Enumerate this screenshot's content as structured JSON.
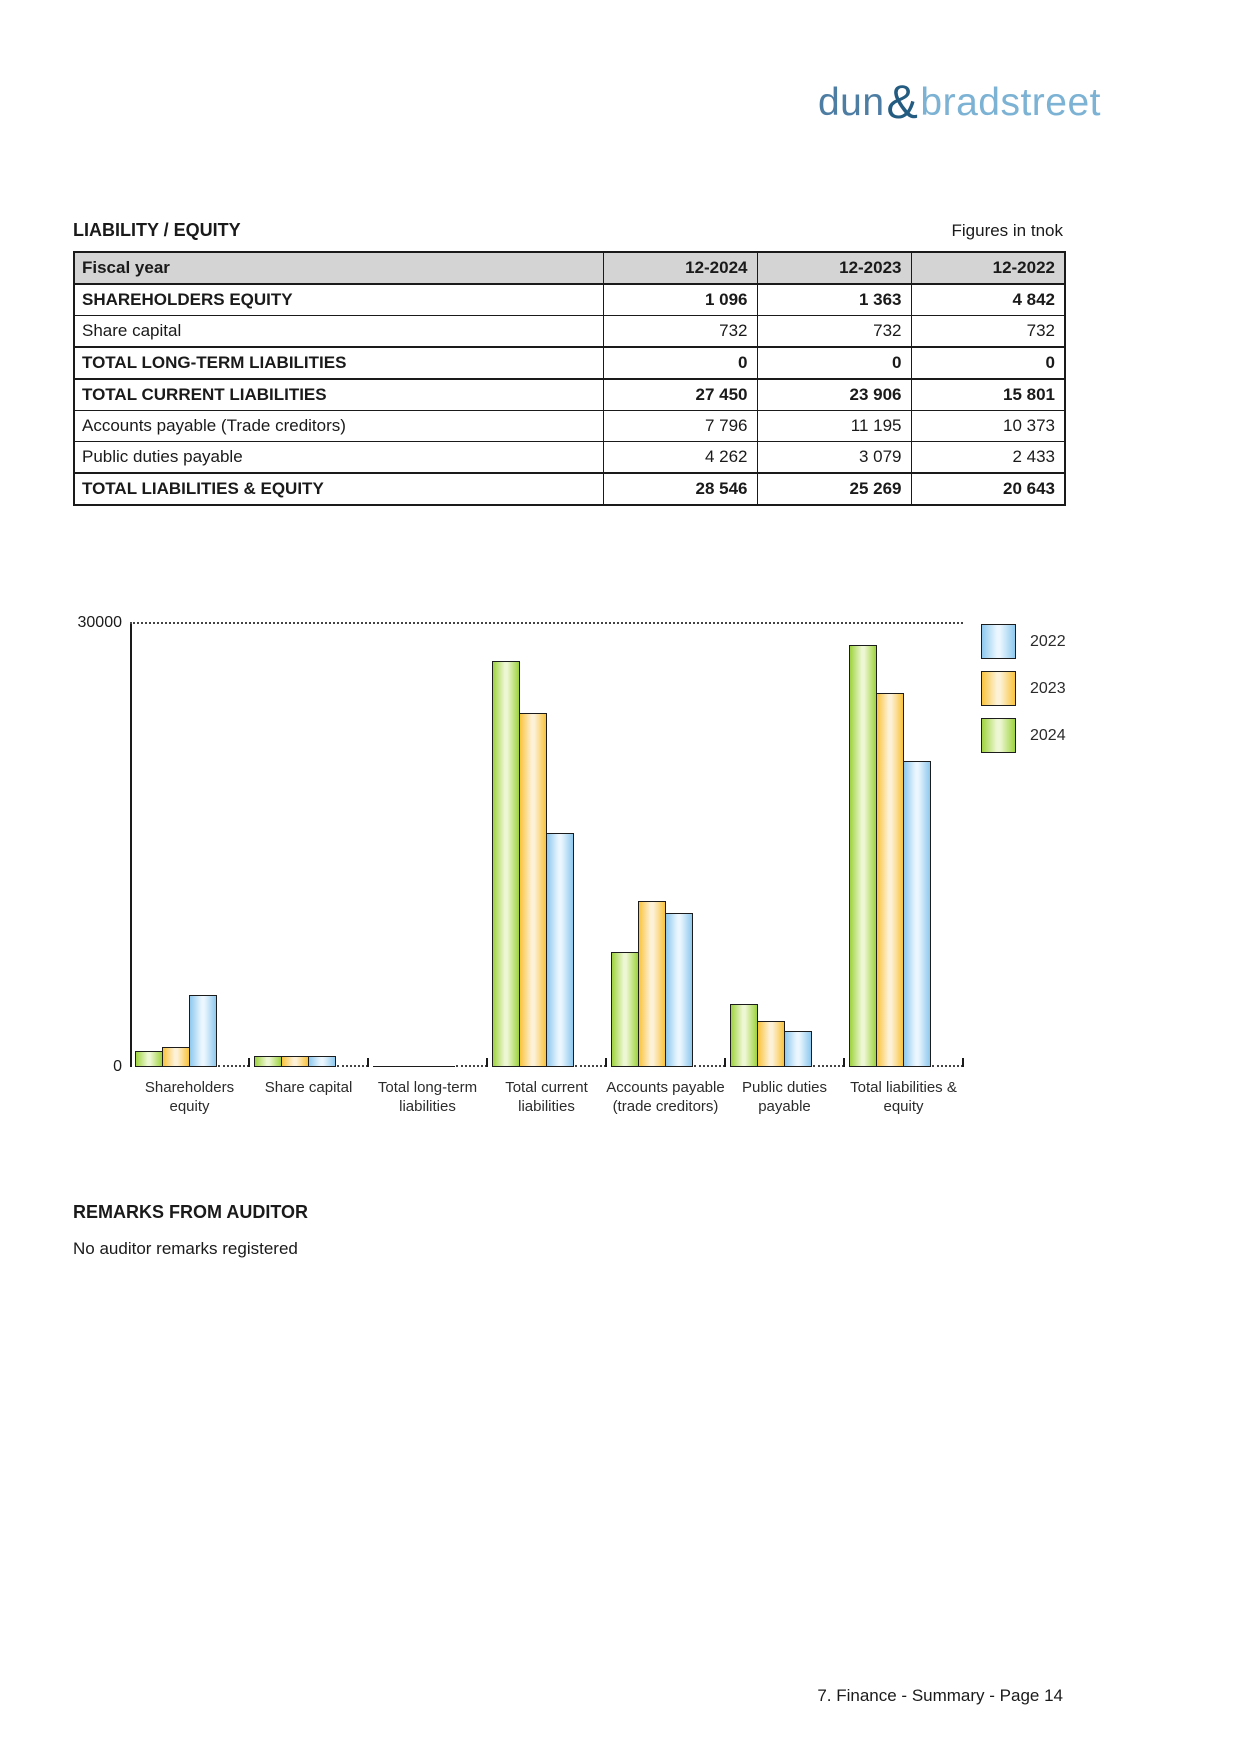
{
  "brand": {
    "dun": "dun",
    "amp": "&",
    "bradstreet": "bradstreet"
  },
  "section": {
    "title": "LIABILITY / EQUITY",
    "units_note": "Figures in tnok"
  },
  "table": {
    "header": [
      "Fiscal year",
      "12-2024",
      "12-2023",
      "12-2022"
    ],
    "rows": [
      {
        "label": "SHAREHOLDERS EQUITY",
        "values": [
          "1 096",
          "1 363",
          "4 842"
        ],
        "bold": true,
        "section_top": false
      },
      {
        "label": "Share capital",
        "values": [
          "732",
          "732",
          "732"
        ],
        "bold": false,
        "section_top": false
      },
      {
        "label": "TOTAL LONG-TERM LIABILITIES",
        "values": [
          "0",
          "0",
          "0"
        ],
        "bold": true,
        "section_top": true
      },
      {
        "label": "TOTAL CURRENT LIABILITIES",
        "values": [
          "27 450",
          "23 906",
          "15 801"
        ],
        "bold": true,
        "section_top": true
      },
      {
        "label": "Accounts payable (Trade creditors)",
        "values": [
          "7 796",
          "11 195",
          "10 373"
        ],
        "bold": false,
        "section_top": false
      },
      {
        "label": "Public duties payable",
        "values": [
          "4 262",
          "3 079",
          "2 433"
        ],
        "bold": false,
        "section_top": false
      },
      {
        "label": "TOTAL LIABILITIES & EQUITY",
        "values": [
          "28 546",
          "25 269",
          "20 643"
        ],
        "bold": true,
        "section_top": true
      }
    ]
  },
  "chart_data": {
    "type": "bar",
    "title": "",
    "xlabel": "",
    "ylabel": "",
    "ylim": [
      0,
      30000
    ],
    "yticks": [
      0,
      30000
    ],
    "grid": "dotted line at 30000 only",
    "legend_position": "right",
    "legend_order": [
      "2022",
      "2023",
      "2024"
    ],
    "categories": [
      [
        "Shareholders",
        "equity"
      ],
      [
        "Share capital"
      ],
      [
        "Total long-term",
        "liabilities"
      ],
      [
        "Total current",
        "liabilities"
      ],
      [
        "Accounts payable",
        "(trade creditors)"
      ],
      [
        "Public duties",
        "payable"
      ],
      [
        "Total liabilities &",
        "equity"
      ]
    ],
    "series": [
      {
        "name": "2024",
        "color_edge": "#9ed33f",
        "color_mid": "#edf7d3",
        "values": [
          1096,
          732,
          0,
          27450,
          7796,
          4262,
          28546
        ]
      },
      {
        "name": "2023",
        "color_edge": "#f9c33c",
        "color_mid": "#fdf2d8",
        "values": [
          1363,
          732,
          0,
          23906,
          11195,
          3079,
          25269
        ]
      },
      {
        "name": "2022",
        "color_edge": "#8ec9ee",
        "color_mid": "#ebf6fe",
        "values": [
          4842,
          732,
          0,
          15801,
          10373,
          2433,
          20643
        ]
      }
    ]
  },
  "remarks": {
    "heading": "REMARKS FROM AUDITOR",
    "body": "No auditor remarks registered"
  },
  "footer": {
    "text": "7. Finance - Summary - Page 14"
  }
}
